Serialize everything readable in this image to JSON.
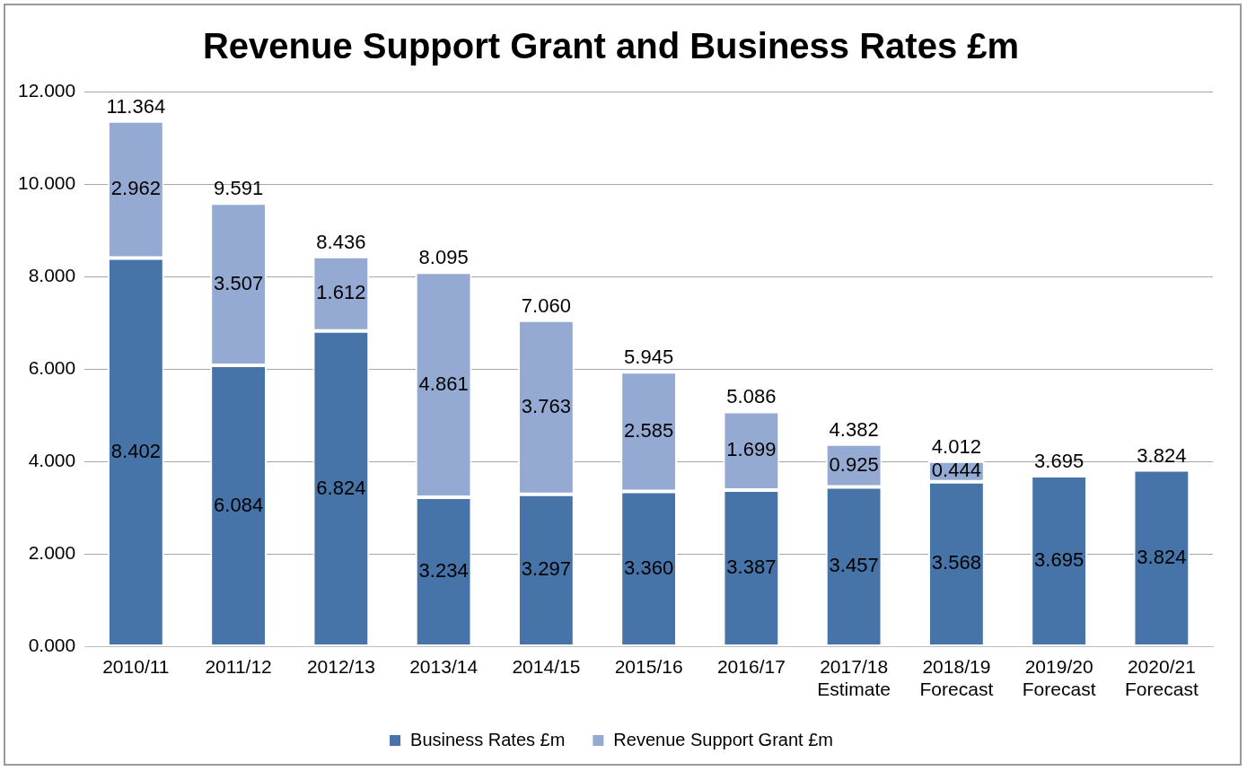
{
  "chart_data": {
    "type": "bar",
    "title": "Revenue Support Grant and Business Rates £m",
    "categories": [
      "2010/11",
      "2011/12",
      "2012/13",
      "2013/14",
      "2014/15",
      "2015/16",
      "2016/17",
      "2017/18\nEstimate",
      "2018/19\nForecast",
      "2019/20\nForecast",
      "2020/21\nForecast"
    ],
    "series": [
      {
        "name": "Business Rates £m",
        "color": "#4673a8",
        "values": [
          8.402,
          6.084,
          6.824,
          3.234,
          3.297,
          3.36,
          3.387,
          3.457,
          3.568,
          3.695,
          3.824
        ],
        "value_labels": [
          "8.402",
          "6.084",
          "6.824",
          "3.234",
          "3.297",
          "3.360",
          "3.387",
          "3.457",
          "3.568",
          "3.695",
          "3.824"
        ]
      },
      {
        "name": "Revenue Support Grant £m",
        "color": "#94aad3",
        "values": [
          2.962,
          3.507,
          1.612,
          4.861,
          3.763,
          2.585,
          1.699,
          0.925,
          0.444,
          null,
          null
        ],
        "value_labels": [
          "2.962",
          "3.507",
          "1.612",
          "4.861",
          "3.763",
          "2.585",
          "1.699",
          "0.925",
          "0.444",
          null,
          null
        ]
      }
    ],
    "stacked": true,
    "totals": [
      "11.364",
      "9.591",
      "8.436",
      "8.095",
      "7.060",
      "5.945",
      "5.086",
      "4.382",
      "4.012",
      "3.695",
      "3.824"
    ],
    "ylim": [
      0,
      12
    ],
    "yticks": [
      {
        "value": 0,
        "label": "0.000"
      },
      {
        "value": 2,
        "label": "2.000"
      },
      {
        "value": 4,
        "label": "4.000"
      },
      {
        "value": 6,
        "label": "6.000"
      },
      {
        "value": 8,
        "label": "8.000"
      },
      {
        "value": 10,
        "label": "10.000"
      },
      {
        "value": 12,
        "label": "12.000"
      }
    ],
    "grid": "y",
    "legend": "bottom"
  }
}
